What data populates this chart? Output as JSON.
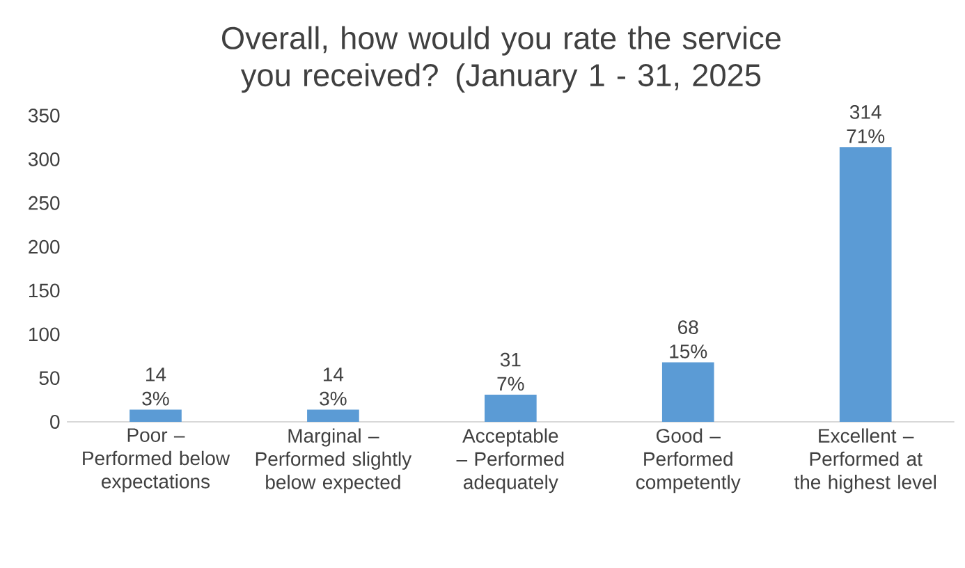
{
  "chart_data": {
    "type": "bar",
    "title": "Overall, how would you rate the service you received? (January 1 - 31, 2025",
    "categories": [
      "Poor – Performed below expectations",
      "Marginal – Performed slightly below expected",
      "Acceptable – Performed adequately",
      "Good – Performed competently",
      "Excellent – Performed at the highest level"
    ],
    "values": [
      14,
      14,
      31,
      68,
      314
    ],
    "value_labels": [
      "14 3%",
      "14 3%",
      "31 7%",
      "68 15%",
      "314 71%"
    ],
    "color": "#5b9bd5",
    "ylim": [
      0,
      350
    ],
    "yticks": [
      0,
      50,
      100,
      150,
      200,
      250,
      300,
      350
    ],
    "grid": false
  }
}
